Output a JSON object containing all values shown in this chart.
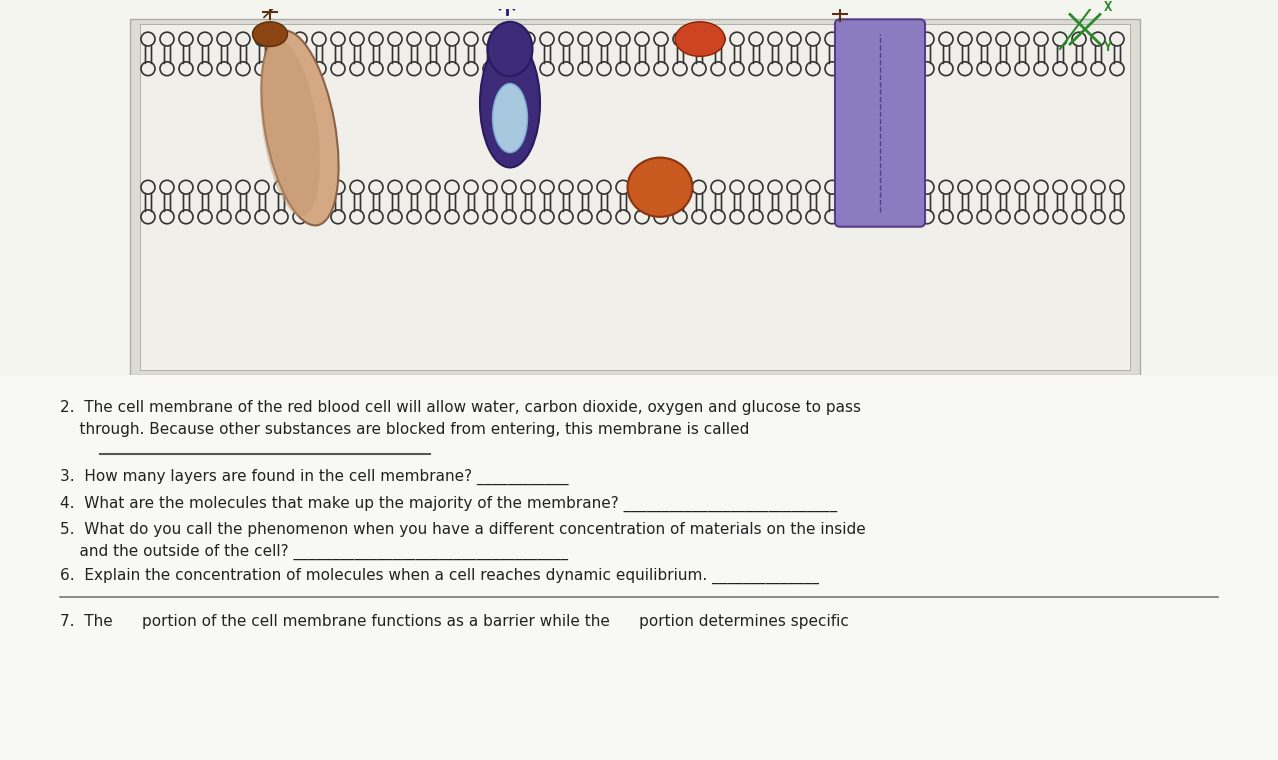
{
  "bg_color": "#f5f5f0",
  "image_bg": "#e8e8e0",
  "questions": [
    "2.  The cell membrane of the red blood cell will allow water, carbon dioxide, oxygen and glucose to pass\n    through. Because other substances are blocked from entering, this membrane is called",
    "3.  How many layers are found in the cell membrane? ____________",
    "4.  What are the molecules that make up the majority of the membrane? ____________________________",
    "5.  What do you call the phenomenon when you have a different concentration of materials on the inside\n    and the outside of the cell? ____________________________________",
    "6.  Explain the concentration of molecules when a cell reaches dynamic equilibrium. ______________",
    "7.  The      portion of the cell membrane functions as a barrier while the      portion determines specific"
  ],
  "answer_line_q2": "________________________________",
  "font_size": 11,
  "title_color": "#222222",
  "line_color": "#555555"
}
